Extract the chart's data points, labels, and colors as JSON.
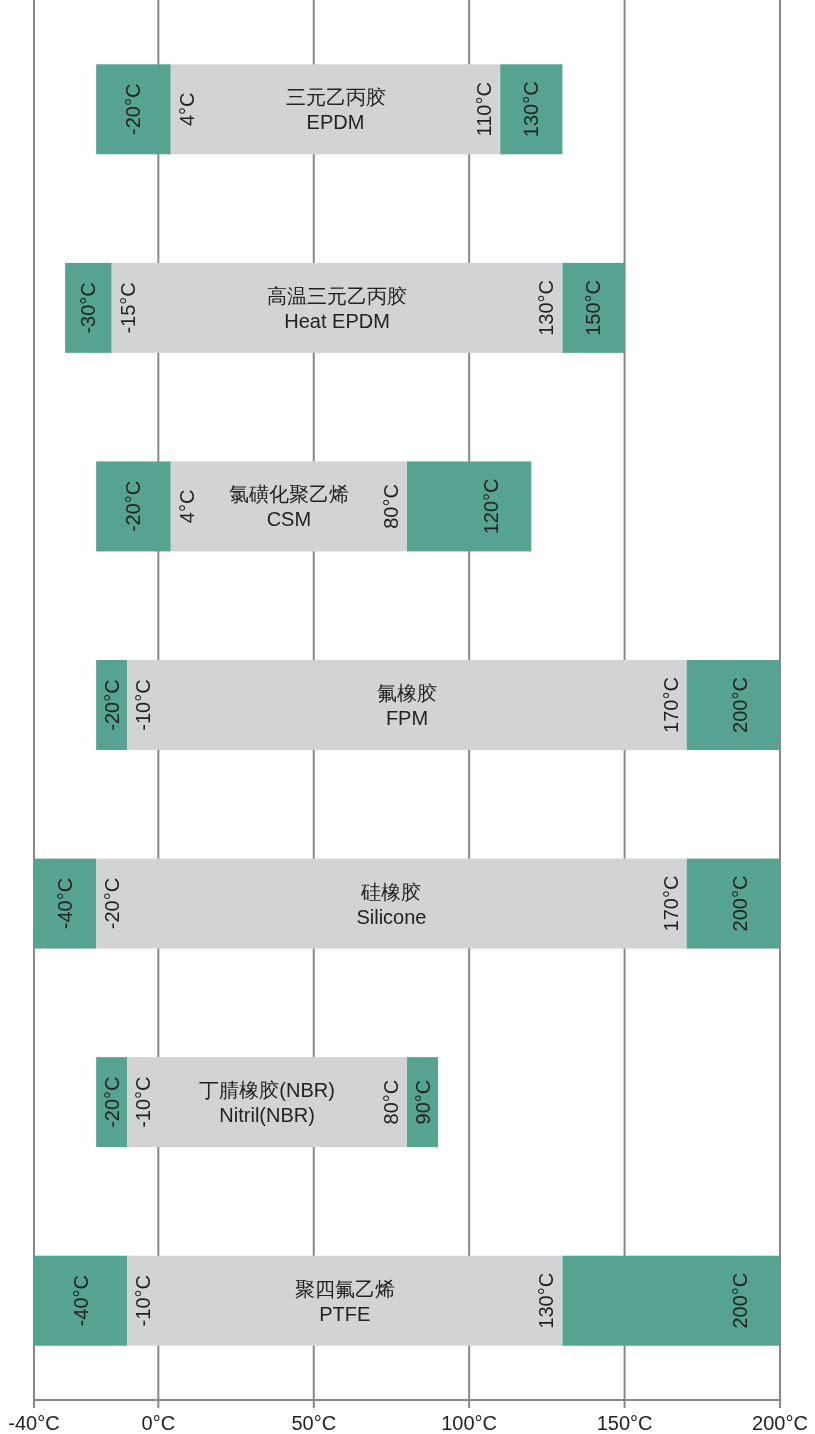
{
  "chart_data": {
    "type": "bar",
    "orientation": "horizontal",
    "categories": [
      "三元乙丙胶\nEPDM",
      "高温三元乙丙胶\nHeat EPDM",
      "氯磺化聚乙烯\nCSM",
      "氟橡胶\nFPM",
      "硅橡胶\nSilicone",
      "丁腈橡胶(NBR)\nNitril(NBR)",
      "聚四氟乙烯\nPTFE"
    ],
    "series": [
      {
        "color": "#56a391",
        "base": [
          -20,
          -30,
          -20,
          -20,
          -40,
          -20,
          -40
        ],
        "values": [
          24,
          15,
          24,
          10,
          20,
          10,
          30
        ]
      },
      {
        "color": "#d2d3d5",
        "base": [
          4,
          -15,
          4,
          -10,
          -20,
          -10,
          -10
        ],
        "values": [
          106,
          145,
          76,
          180,
          190,
          90,
          140
        ]
      },
      {
        "color": "#56a391",
        "base": [
          110,
          130,
          80,
          170,
          170,
          80,
          130
        ],
        "values": [
          20,
          20,
          40,
          30,
          30,
          10,
          70
        ]
      }
    ],
    "xlim": [
      -40,
      200
    ],
    "xticks": [
      {
        "value": -40,
        "label": "-40°C"
      },
      {
        "value": 0,
        "label": "0°C"
      },
      {
        "value": 50,
        "label": "50°C"
      },
      {
        "value": 100,
        "label": "100°C"
      },
      {
        "value": 150,
        "label": "150°C"
      },
      {
        "value": 200,
        "label": "200°C"
      }
    ],
    "grid": "x",
    "annotations": [
      {
        "text": "-20°C",
        "x": -20,
        "y": "三元乙丙胶\nEPDM"
      },
      {
        "text": "4°C",
        "x": 4,
        "y": "三元乙丙胶\nEPDM"
      },
      {
        "text": "110°C",
        "x": 110,
        "y": "三元乙丙胶\nEPDM"
      },
      {
        "text": "130°C",
        "x": 130,
        "y": "三元乙丙胶\nEPDM"
      },
      {
        "text": "-30°C",
        "x": -30,
        "y": "高温三元乙丙胶\nHeat EPDM"
      },
      {
        "text": "-15°C",
        "x": -15,
        "y": "高温三元乙丙胶\nHeat EPDM"
      },
      {
        "text": "130°C",
        "x": 130,
        "y": "高温三元乙丙胶\nHeat EPDM"
      },
      {
        "text": "150°C",
        "x": 150,
        "y": "高温三元乙丙胶\nHeat EPDM"
      },
      {
        "text": "-20°C",
        "x": -20,
        "y": "氯磺化聚乙烯\nCSM"
      },
      {
        "text": "4°C",
        "x": 4,
        "y": "氯磺化聚乙烯\nCSM"
      },
      {
        "text": "80°C",
        "x": 80,
        "y": "氯磺化聚乙烯\nCSM"
      },
      {
        "text": "120°C",
        "x": 120,
        "y": "氯磺化聚乙烯\nCSM"
      },
      {
        "text": "-20°C",
        "x": -20,
        "y": "氟橡胶\nFPM"
      },
      {
        "text": "-10°C",
        "x": -10,
        "y": "氟橡胶\nFPM"
      },
      {
        "text": "170°C",
        "x": 170,
        "y": "氟橡胶\nFPM"
      },
      {
        "text": "200°C",
        "x": 200,
        "y": "氟橡胶\nFPM"
      },
      {
        "text": "-40°C",
        "x": -40,
        "y": "硅橡胶\nSilicone"
      },
      {
        "text": "-20°C",
        "x": -20,
        "y": "硅橡胶\nSilicone"
      },
      {
        "text": "170°C",
        "x": 170,
        "y": "硅橡胶\nSilicone"
      },
      {
        "text": "200°C",
        "x": 200,
        "y": "硅橡胶\nSilicone"
      },
      {
        "text": "-20°C",
        "x": -20,
        "y": "丁腈橡胶(NBR)\nNitril(NBR)"
      },
      {
        "text": "-10°C",
        "x": -10,
        "y": "丁腈橡胶(NBR)\nNitril(NBR)"
      },
      {
        "text": "80°C",
        "x": 80,
        "y": "丁腈橡胶(NBR)\nNitril(NBR)"
      },
      {
        "text": "90°C",
        "x": 90,
        "y": "丁腈橡胶(NBR)\nNitril(NBR)"
      },
      {
        "text": "-40°C",
        "x": -40,
        "y": "聚四氟乙烯\nPTFE"
      },
      {
        "text": "-10°C",
        "x": -10,
        "y": "聚四氟乙烯\nPTFE"
      },
      {
        "text": "130°C",
        "x": 130,
        "y": "聚四氟乙烯\nPTFE"
      },
      {
        "text": "200°C",
        "x": 200,
        "y": "聚四氟乙烯\nPTFE"
      }
    ]
  }
}
